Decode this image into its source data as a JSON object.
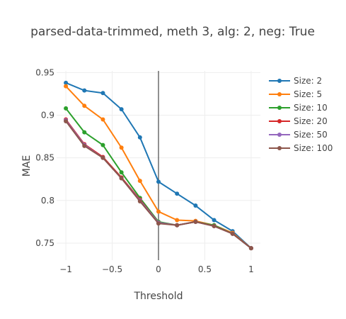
{
  "chart_data": {
    "type": "line",
    "title": "parsed-data-trimmed, meth 3, alg: 2, neg: True",
    "xlabel": "Threshold",
    "ylabel": "MAE",
    "xlim": [
      -1.1,
      1.1
    ],
    "ylim": [
      0.73,
      0.952
    ],
    "x_ticks": [
      -1,
      -0.5,
      0,
      0.5,
      1
    ],
    "x_tick_labels": [
      "−1",
      "−0.5",
      "0",
      "0.5",
      "1"
    ],
    "y_ticks": [
      0.75,
      0.8,
      0.85,
      0.9,
      0.95
    ],
    "y_tick_labels": [
      "0.75",
      "0.8",
      "0.85",
      "0.9",
      "0.95"
    ],
    "grid": true,
    "legend_position": "right",
    "x": [
      -1,
      -0.8,
      -0.6,
      -0.4,
      -0.2,
      0,
      0.2,
      0.4,
      0.6,
      0.8,
      1
    ],
    "series": [
      {
        "name": "Size: 2",
        "color": "#1f77b4",
        "values": [
          0.938,
          0.929,
          0.926,
          0.907,
          0.874,
          0.822,
          0.808,
          0.794,
          0.777,
          0.764,
          0.744
        ]
      },
      {
        "name": "Size: 5",
        "color": "#ff7f0e",
        "values": [
          0.934,
          0.911,
          0.895,
          0.862,
          0.823,
          0.787,
          0.777,
          0.776,
          0.771,
          0.762,
          0.744
        ]
      },
      {
        "name": "Size: 10",
        "color": "#2ca02c",
        "values": [
          0.908,
          0.88,
          0.865,
          0.833,
          0.803,
          0.775,
          0.771,
          0.775,
          0.771,
          0.761,
          0.744
        ]
      },
      {
        "name": "Size: 20",
        "color": "#d62728",
        "values": [
          0.895,
          0.866,
          0.851,
          0.827,
          0.801,
          0.774,
          0.771,
          0.775,
          0.77,
          0.761,
          0.744
        ]
      },
      {
        "name": "Size: 50",
        "color": "#9467bd",
        "values": [
          0.894,
          0.865,
          0.85,
          0.826,
          0.8,
          0.774,
          0.771,
          0.775,
          0.77,
          0.761,
          0.744
        ]
      },
      {
        "name": "Size: 100",
        "color": "#8c564b",
        "values": [
          0.893,
          0.864,
          0.85,
          0.826,
          0.799,
          0.773,
          0.771,
          0.775,
          0.77,
          0.761,
          0.744
        ]
      }
    ]
  }
}
